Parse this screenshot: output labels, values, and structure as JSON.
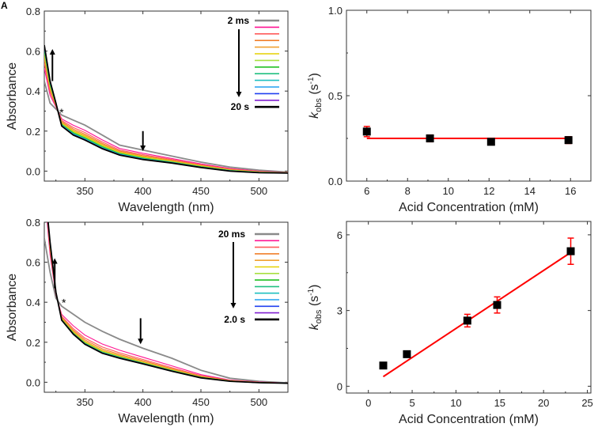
{
  "panel_labels": [
    "A"
  ],
  "chart_data": [
    {
      "id": "A",
      "type": "line",
      "xlabel": "Wavelength (nm)",
      "ylabel": "Absorbance",
      "xlim": [
        315,
        525
      ],
      "ylim": [
        -0.05,
        0.8
      ],
      "xticks": [
        350,
        400,
        450,
        500
      ],
      "yticks": [
        0.0,
        0.2,
        0.4,
        0.6,
        0.8
      ],
      "ytick_labels": [
        "0.0",
        "0.2",
        "0.4",
        "0.6",
        "0.8"
      ],
      "x": [
        315,
        320,
        325,
        330,
        340,
        350,
        365,
        380,
        400,
        425,
        450,
        475,
        500,
        525
      ],
      "legend": {
        "first": "2 ms",
        "last": "20 s"
      },
      "annotation": "*",
      "series": [
        {
          "color": "#8a8a8a",
          "values": [
            0.45,
            0.34,
            0.31,
            0.28,
            0.255,
            0.23,
            0.18,
            0.13,
            0.105,
            0.075,
            0.045,
            0.02,
            0.005,
            -0.005
          ]
        },
        {
          "color": "#ff1493",
          "values": [
            0.513,
            0.379,
            0.321,
            0.261,
            0.229,
            0.204,
            0.156,
            0.113,
            0.089,
            0.063,
            0.036,
            0.013,
            0.0,
            -0.007
          ]
        },
        {
          "color": "#ff5a5a",
          "values": [
            0.54,
            0.395,
            0.325,
            0.253,
            0.218,
            0.193,
            0.146,
            0.105,
            0.082,
            0.058,
            0.032,
            0.01,
            -0.002,
            -0.008
          ]
        },
        {
          "color": "#f07f2a",
          "values": [
            0.558,
            0.406,
            0.328,
            0.247,
            0.21,
            0.185,
            0.139,
            0.1,
            0.077,
            0.054,
            0.029,
            0.008,
            -0.003,
            -0.008
          ]
        },
        {
          "color": "#f0a030",
          "values": [
            0.572,
            0.415,
            0.33,
            0.243,
            0.204,
            0.179,
            0.134,
            0.096,
            0.073,
            0.051,
            0.027,
            0.006,
            -0.004,
            -0.008
          ]
        },
        {
          "color": "#e6d000",
          "values": [
            0.585,
            0.423,
            0.333,
            0.239,
            0.199,
            0.174,
            0.129,
            0.093,
            0.07,
            0.049,
            0.025,
            0.005,
            -0.005,
            -0.009
          ]
        },
        {
          "color": "#a8e040",
          "values": [
            0.594,
            0.428,
            0.334,
            0.236,
            0.195,
            0.17,
            0.126,
            0.09,
            0.067,
            0.047,
            0.023,
            0.004,
            -0.005,
            -0.009
          ]
        },
        {
          "color": "#20c020",
          "values": [
            0.603,
            0.434,
            0.336,
            0.233,
            0.191,
            0.166,
            0.122,
            0.088,
            0.065,
            0.045,
            0.022,
            0.003,
            -0.006,
            -0.009
          ]
        },
        {
          "color": "#20c080",
          "values": [
            0.61,
            0.438,
            0.337,
            0.231,
            0.188,
            0.163,
            0.119,
            0.086,
            0.063,
            0.044,
            0.021,
            0.002,
            -0.007,
            -0.009
          ]
        },
        {
          "color": "#20c0c0",
          "values": [
            0.616,
            0.441,
            0.338,
            0.229,
            0.186,
            0.161,
            0.117,
            0.084,
            0.062,
            0.043,
            0.02,
            0.002,
            -0.007,
            -0.01
          ]
        },
        {
          "color": "#20a0f0",
          "values": [
            0.621,
            0.445,
            0.339,
            0.228,
            0.184,
            0.159,
            0.115,
            0.083,
            0.06,
            0.042,
            0.019,
            0.001,
            -0.007,
            -0.01
          ]
        },
        {
          "color": "#2040f0",
          "values": [
            0.625,
            0.447,
            0.339,
            0.227,
            0.182,
            0.157,
            0.114,
            0.082,
            0.059,
            0.041,
            0.019,
            0.001,
            -0.008,
            -0.01
          ]
        },
        {
          "color": "#8020d0",
          "values": [
            0.628,
            0.449,
            0.34,
            0.226,
            0.181,
            0.156,
            0.113,
            0.081,
            0.058,
            0.04,
            0.018,
            0.0,
            -0.008,
            -0.01
          ]
        },
        {
          "color": "#000000",
          "values": [
            0.63,
            0.45,
            0.34,
            0.225,
            0.18,
            0.155,
            0.112,
            0.08,
            0.058,
            0.04,
            0.018,
            0.0,
            -0.008,
            -0.01
          ]
        }
      ]
    },
    {
      "id": "B",
      "type": "scatter",
      "xlabel": "Acid Concentration (mM)",
      "ylabel": {
        "k": "k",
        "sub": "obs",
        "mid": " (s",
        "sup": "-1",
        "end": ")"
      },
      "xlim": [
        5,
        17
      ],
      "ylim": [
        0,
        1
      ],
      "xticks": [
        6,
        8,
        10,
        12,
        14,
        16
      ],
      "yticks": [
        0,
        0.5,
        1.0
      ],
      "ytick_labels": [
        "0.0",
        "0.5",
        "1.0"
      ],
      "points": [
        {
          "x": 6.0,
          "y": 0.29,
          "err": 0.03
        },
        {
          "x": 9.1,
          "y": 0.25,
          "err": 0.02
        },
        {
          "x": 12.1,
          "y": 0.23,
          "err": 0.015
        },
        {
          "x": 15.9,
          "y": 0.24,
          "err": 0.02
        }
      ],
      "fit": {
        "x": [
          6,
          16
        ],
        "y": [
          0.25,
          0.25
        ],
        "color": "#ff0000"
      }
    },
    {
      "id": "C",
      "type": "line",
      "xlabel": "Wavelength (nm)",
      "ylabel": "Absorbance",
      "xlim": [
        315,
        525
      ],
      "ylim": [
        -0.05,
        0.8
      ],
      "xticks": [
        350,
        400,
        450,
        500
      ],
      "yticks": [
        0.0,
        0.2,
        0.4,
        0.6,
        0.8
      ],
      "ytick_labels": [
        "0.0",
        "0.2",
        "0.4",
        "0.6",
        "0.8"
      ],
      "x": [
        315,
        320,
        325,
        330,
        340,
        350,
        365,
        380,
        400,
        425,
        450,
        475,
        500,
        525
      ],
      "legend": {
        "first": "20  ms",
        "last": "2.0 s"
      },
      "annotation": "*",
      "series": [
        {
          "color": "#8a8a8a",
          "values": [
            0.72,
            0.55,
            0.42,
            0.38,
            0.34,
            0.3,
            0.255,
            0.215,
            0.17,
            0.12,
            0.06,
            0.02,
            0.005,
            -0.003
          ]
        },
        {
          "color": "#ff1493",
          "values": [
            0.962,
            0.637,
            0.437,
            0.339,
            0.282,
            0.236,
            0.191,
            0.16,
            0.125,
            0.082,
            0.038,
            0.011,
            0.001,
            -0.004
          ]
        },
        {
          "color": "#ff5a5a",
          "values": [
            1.0,
            0.658,
            0.442,
            0.33,
            0.268,
            0.221,
            0.176,
            0.147,
            0.114,
            0.073,
            0.033,
            0.009,
            0.0,
            -0.004
          ]
        },
        {
          "color": "#f07f2a",
          "values": [
            1.0,
            0.67,
            0.444,
            0.324,
            0.26,
            0.212,
            0.167,
            0.139,
            0.108,
            0.068,
            0.03,
            0.008,
            -0.001,
            -0.005
          ]
        },
        {
          "color": "#f0a030",
          "values": [
            1.0,
            0.679,
            0.446,
            0.32,
            0.254,
            0.205,
            0.16,
            0.133,
            0.103,
            0.064,
            0.027,
            0.007,
            -0.001,
            -0.005
          ]
        },
        {
          "color": "#e6d000",
          "values": [
            1.0,
            0.685,
            0.447,
            0.317,
            0.25,
            0.201,
            0.156,
            0.129,
            0.1,
            0.062,
            0.026,
            0.007,
            -0.001,
            -0.005
          ]
        },
        {
          "color": "#a8e040",
          "values": [
            1.0,
            0.69,
            0.448,
            0.315,
            0.247,
            0.198,
            0.153,
            0.127,
            0.097,
            0.06,
            0.025,
            0.006,
            -0.002,
            -0.005
          ]
        },
        {
          "color": "#20c020",
          "values": [
            1.0,
            0.692,
            0.448,
            0.313,
            0.245,
            0.195,
            0.15,
            0.125,
            0.096,
            0.058,
            0.024,
            0.006,
            -0.002,
            -0.005
          ]
        },
        {
          "color": "#20c080",
          "values": [
            1.0,
            0.694,
            0.449,
            0.313,
            0.244,
            0.194,
            0.149,
            0.124,
            0.095,
            0.058,
            0.024,
            0.006,
            -0.002,
            -0.005
          ]
        },
        {
          "color": "#20c0c0",
          "values": [
            1.0,
            0.695,
            0.449,
            0.312,
            0.243,
            0.193,
            0.148,
            0.123,
            0.094,
            0.057,
            0.023,
            0.005,
            -0.002,
            -0.005
          ]
        },
        {
          "color": "#20a0f0",
          "values": [
            1.0,
            0.697,
            0.449,
            0.311,
            0.242,
            0.192,
            0.147,
            0.122,
            0.094,
            0.056,
            0.023,
            0.005,
            -0.002,
            -0.005
          ]
        },
        {
          "color": "#2040f0",
          "values": [
            1.0,
            0.698,
            0.45,
            0.311,
            0.241,
            0.191,
            0.146,
            0.121,
            0.093,
            0.056,
            0.022,
            0.005,
            -0.002,
            -0.005
          ]
        },
        {
          "color": "#8020d0",
          "values": [
            1.0,
            0.699,
            0.45,
            0.31,
            0.24,
            0.19,
            0.146,
            0.12,
            0.092,
            0.055,
            0.022,
            0.005,
            -0.002,
            -0.005
          ]
        },
        {
          "color": "#000000",
          "values": [
            1.0,
            0.7,
            0.45,
            0.31,
            0.24,
            0.19,
            0.145,
            0.12,
            0.092,
            0.055,
            0.022,
            0.005,
            -0.002,
            -0.005
          ]
        }
      ]
    },
    {
      "id": "D",
      "type": "scatter",
      "xlabel": "Acid Concentration (mM)",
      "ylabel": {
        "k": "k",
        "sub": "obs",
        "mid": " (s",
        "sup": "-1",
        "end": ")"
      },
      "xlim": [
        -2.5,
        25.4
      ],
      "ylim": [
        -0.27,
        6.53
      ],
      "xticks": [
        0,
        5,
        10,
        15,
        20,
        25
      ],
      "yticks": [
        0,
        3,
        6
      ],
      "ytick_labels": [
        "0",
        "3",
        "6"
      ],
      "points": [
        {
          "x": 1.7,
          "y": 0.82,
          "err": 0.12
        },
        {
          "x": 4.4,
          "y": 1.27,
          "err": 0.1
        },
        {
          "x": 11.3,
          "y": 2.6,
          "err": 0.25
        },
        {
          "x": 14.7,
          "y": 3.22,
          "err": 0.32
        },
        {
          "x": 23.1,
          "y": 5.35,
          "err": 0.52
        }
      ],
      "fit": {
        "x": [
          1.7,
          23.1
        ],
        "y": [
          0.38,
          5.3
        ],
        "color": "#ff0000"
      }
    }
  ]
}
